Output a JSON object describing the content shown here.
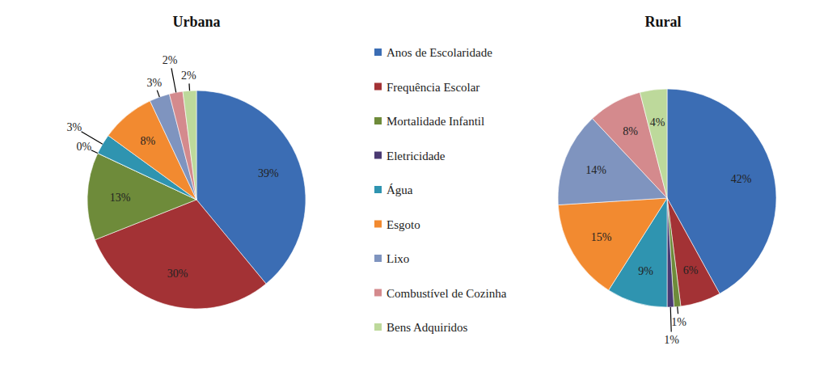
{
  "chart_data": {
    "type": "pie",
    "categories": [
      "Anos de Escolaridade",
      "Frequência Escolar",
      "Mortalidade Infantil",
      "Eletricidade",
      "Água",
      "Esgoto",
      "Lixo",
      "Combustível de Cozinha",
      "Bens Adquiridos"
    ],
    "colors": [
      "#3b6db4",
      "#a33235",
      "#6e8b3a",
      "#4a3a72",
      "#2f94b0",
      "#f28a30",
      "#7f94bf",
      "#d48a8d",
      "#bdd99b"
    ],
    "data_labels": true,
    "series": [
      {
        "name": "Urbana",
        "values": [
          39,
          30,
          13,
          0,
          3,
          8,
          3,
          2,
          2
        ],
        "value_labels": [
          "39%",
          "30%",
          "13%",
          "0%",
          "3%",
          "8%",
          "3%",
          "2%",
          "2%"
        ]
      },
      {
        "name": "Rural",
        "values": [
          42,
          6,
          1,
          1,
          9,
          15,
          14,
          8,
          4
        ],
        "value_labels": [
          "42%",
          "6%",
          "1%",
          "1%",
          "9%",
          "15%",
          "14%",
          "8%",
          "4%"
        ]
      }
    ]
  }
}
